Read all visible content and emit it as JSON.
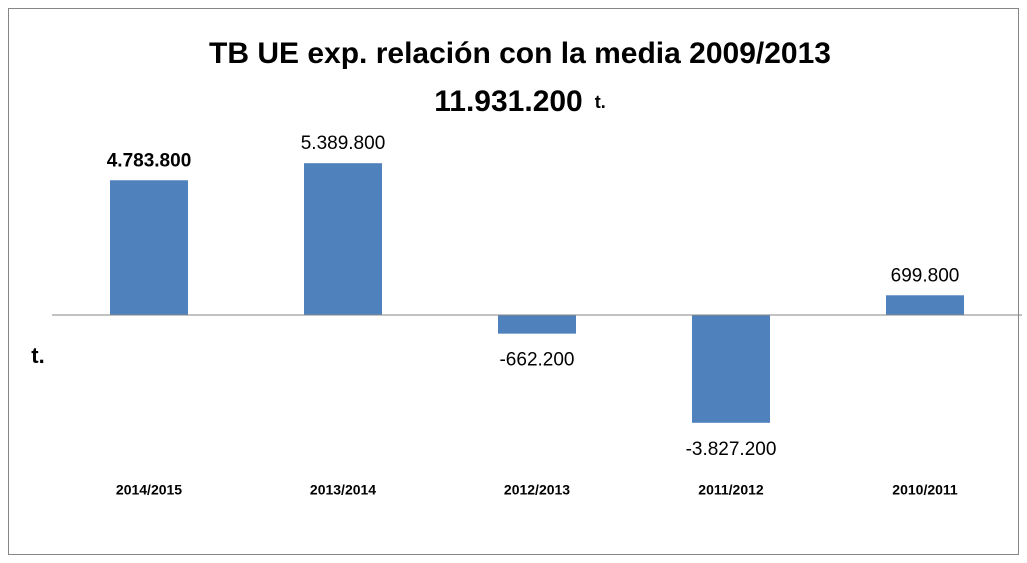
{
  "chart_data": {
    "type": "bar",
    "title": "TB UE exp. relación con la media  2009/2013",
    "subtitle": "11.931.200",
    "subtitle_unit": "t.",
    "y_label": "t.",
    "categories": [
      "2014/2015",
      "2013/2014",
      "2012/2013",
      "2011/2012",
      "2010/2011"
    ],
    "values": [
      4783800,
      5389800,
      -662200,
      -3827200,
      699800
    ],
    "value_labels": [
      "4.783.800",
      "5.389.800",
      "-662.200",
      "-3.827.200",
      "699.800"
    ],
    "value_label_colors": [
      "#ff0000",
      "#000000",
      "#000000",
      "#000000",
      "#000000"
    ],
    "value_label_weights": [
      "bold",
      "normal",
      "normal",
      "normal",
      "normal"
    ],
    "color": "#4f81bd",
    "ylim": [
      -6000000,
      6000000
    ]
  }
}
